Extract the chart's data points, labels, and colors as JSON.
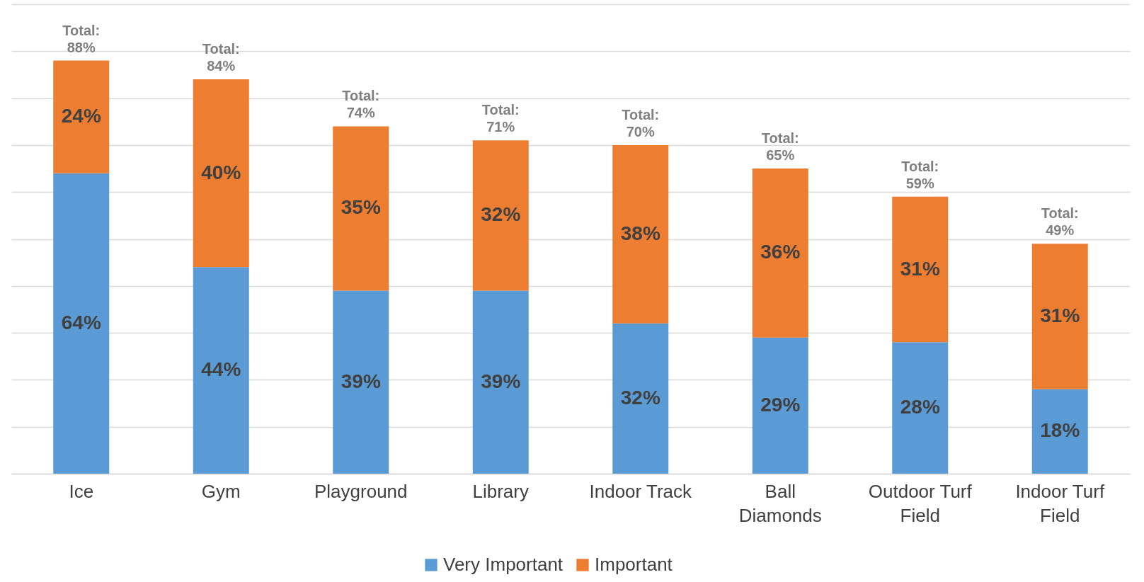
{
  "chart_data": {
    "type": "bar",
    "stacked": true,
    "categories": [
      "Ice",
      "Gym",
      "Playground",
      "Library",
      "Indoor Track",
      "Ball Diamonds",
      "Outdoor Turf Field",
      "Indoor Turf Field"
    ],
    "series": [
      {
        "name": "Very Important",
        "color": "#5b9bd5",
        "values": [
          64,
          44,
          39,
          39,
          32,
          29,
          28,
          18
        ],
        "value_labels": [
          "64%",
          "44%",
          "39%",
          "39%",
          "32%",
          "29%",
          "28%",
          "18%"
        ]
      },
      {
        "name": "Important",
        "color": "#ed7d31",
        "values": [
          24,
          40,
          35,
          32,
          38,
          36,
          31,
          31
        ],
        "value_labels": [
          "24%",
          "40%",
          "35%",
          "32%",
          "38%",
          "36%",
          "31%",
          "31%"
        ]
      }
    ],
    "totals": [
      "Total: 88%",
      "Total: 84%",
      "Total: 74%",
      "Total: 71%",
      "Total: 70%",
      "Total: 65%",
      "Total: 59%",
      "Total: 49%"
    ],
    "ylim": [
      0,
      100
    ],
    "yticks": [
      {
        "value": 0,
        "label": null
      },
      {
        "value": 10,
        "label": null
      },
      {
        "value": 20,
        "label": null
      },
      {
        "value": 30,
        "label": null
      },
      {
        "value": 40,
        "label": null
      },
      {
        "value": 50,
        "label": null
      },
      {
        "value": 60,
        "label": null
      },
      {
        "value": 70,
        "label": null
      },
      {
        "value": 80,
        "label": null
      },
      {
        "value": 90,
        "label": null
      },
      {
        "value": 100,
        "label": null
      }
    ],
    "tick_labels": "x",
    "grid": "y",
    "legend": "bottom"
  }
}
